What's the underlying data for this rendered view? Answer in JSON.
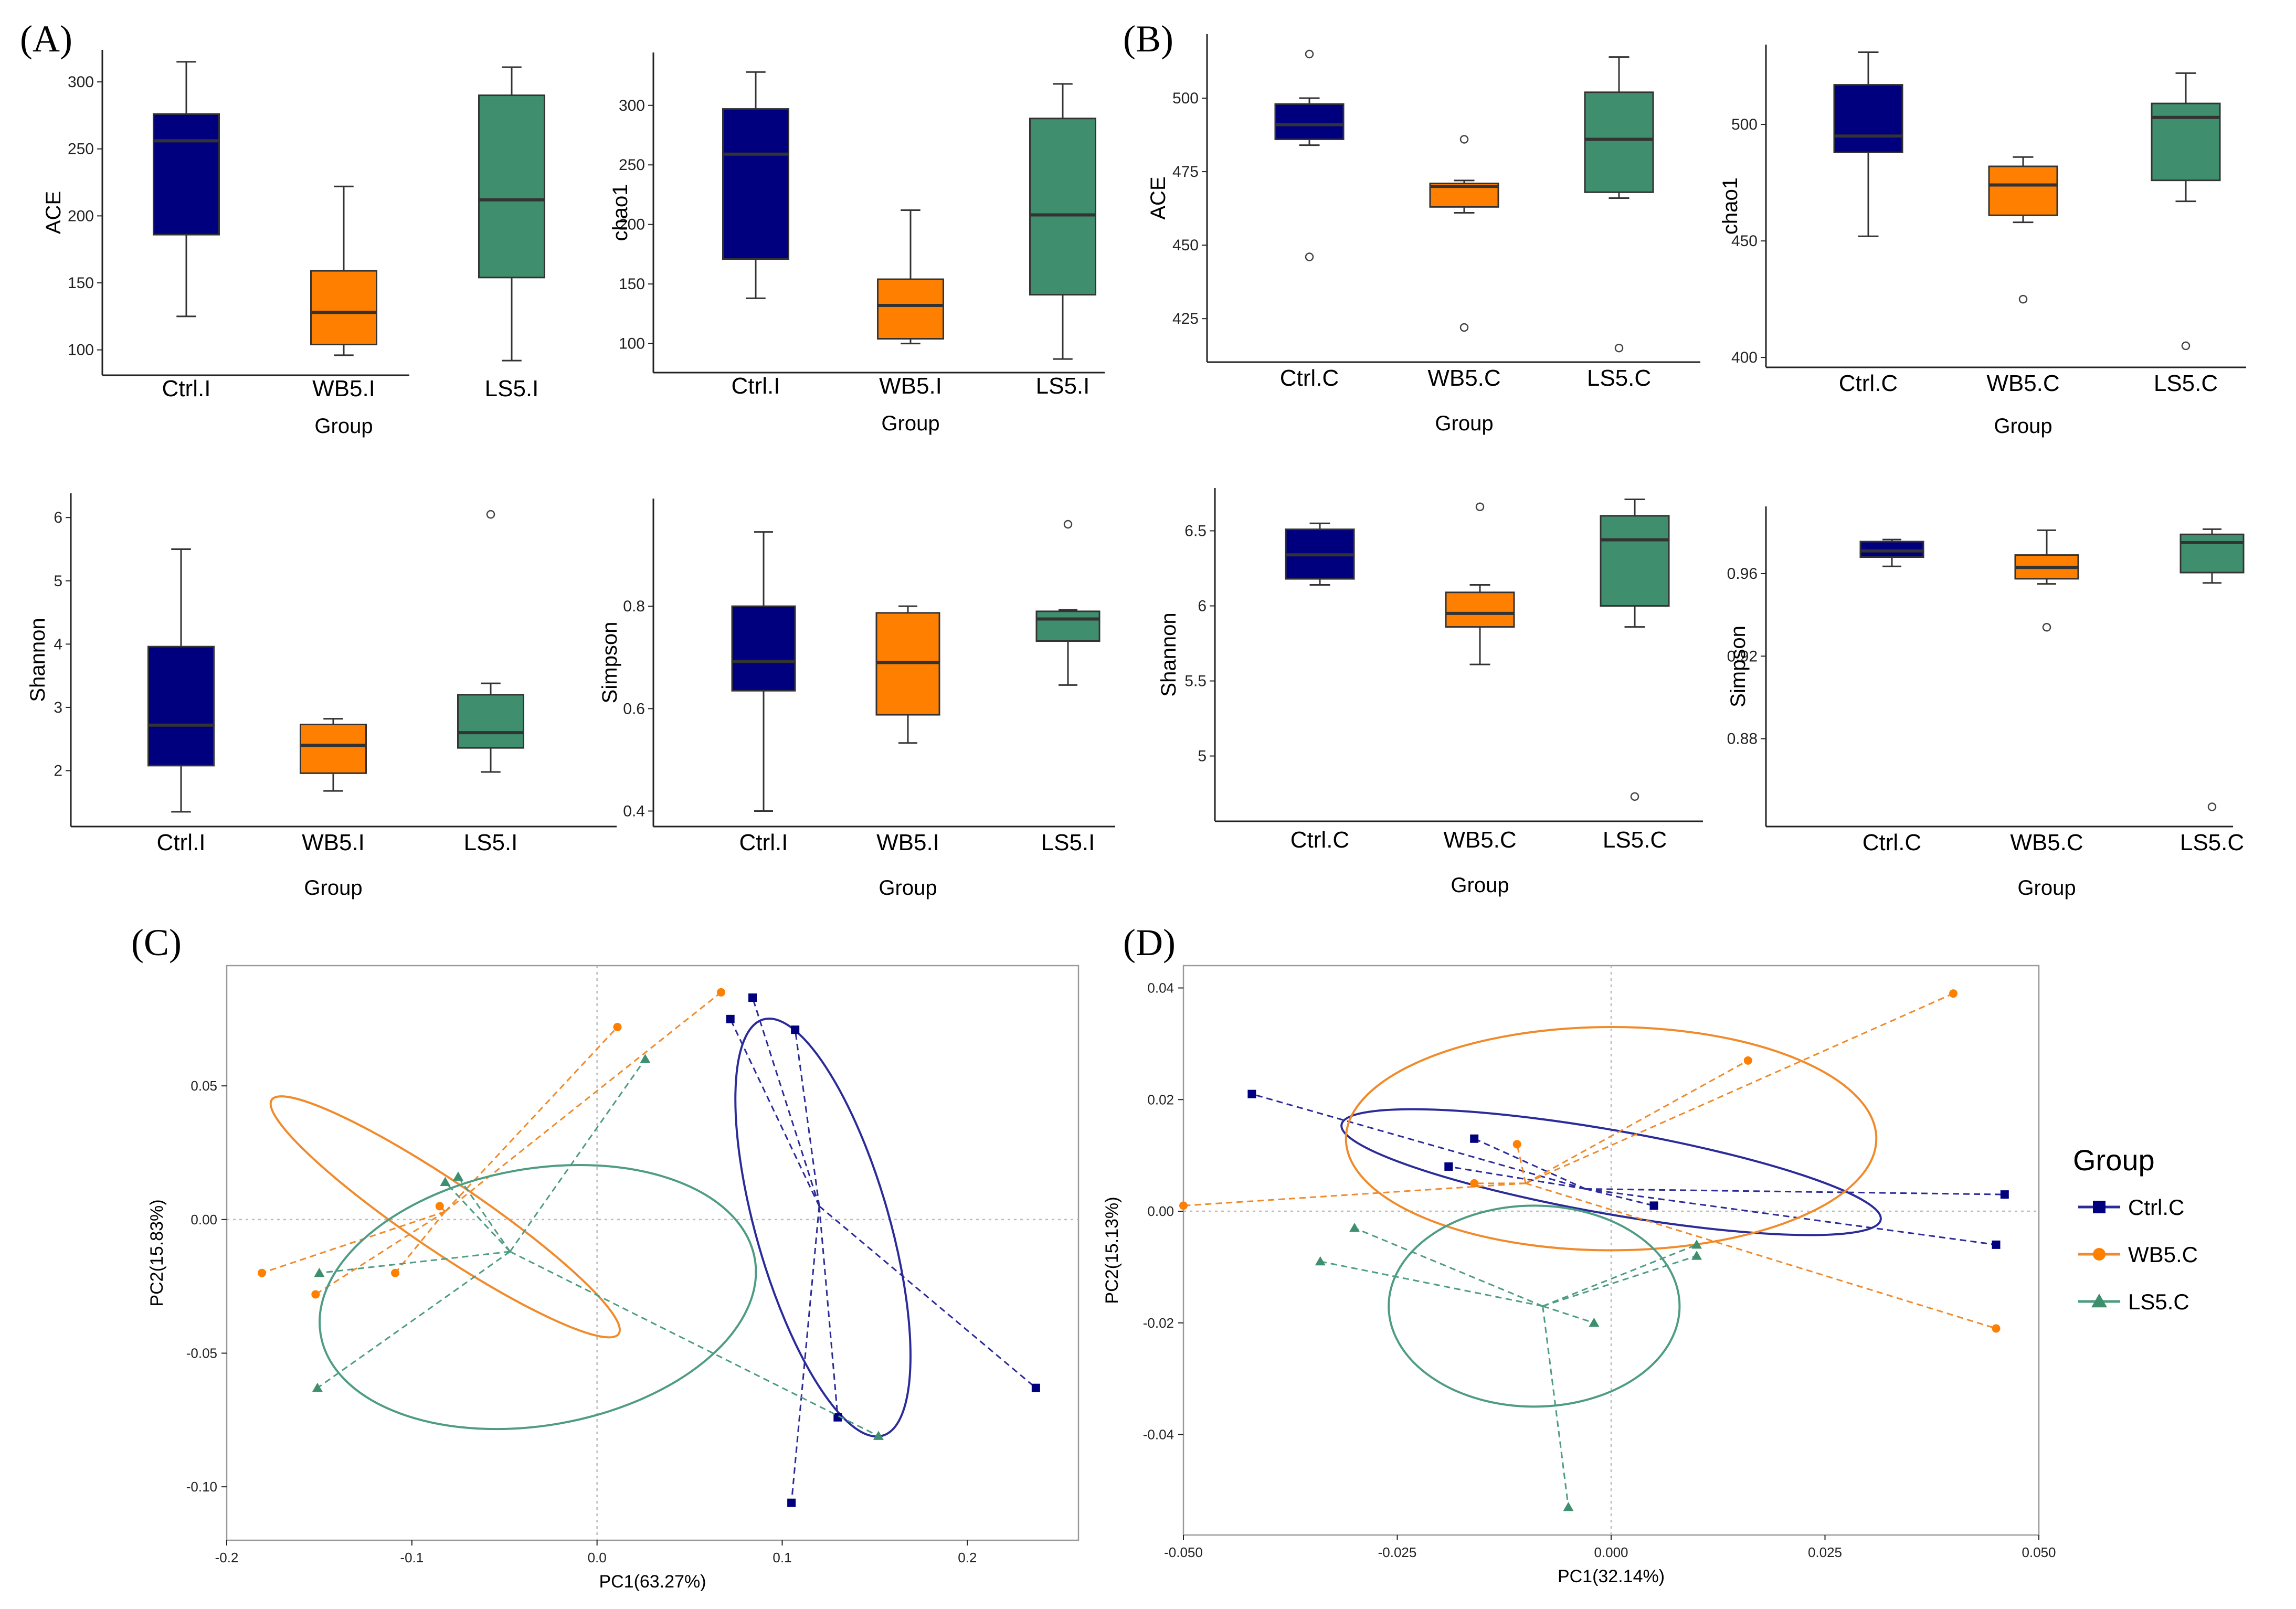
{
  "panel_labels": [
    "(A)",
    "(B)",
    "(C)",
    "(D)"
  ],
  "colors": {
    "Ctrl": "#00007F",
    "WB5": "#FF7F00",
    "LS5": "#3F8F6F",
    "Ctrl_line": "#2B2B9A",
    "WB5_line": "#F08A2A",
    "LS5_line": "#4E9C83",
    "axis": "#222222",
    "grid": "#BBBBBB"
  },
  "legend": {
    "title": "Group",
    "items": [
      {
        "label": "Ctrl.C",
        "group": "Ctrl",
        "marker": "square"
      },
      {
        "label": "WB5.C",
        "group": "WB5",
        "marker": "circle"
      },
      {
        "label": "LS5.C",
        "group": "LS5",
        "marker": "triangle"
      }
    ]
  },
  "chart_data": [
    {
      "panel": "A",
      "type": "box",
      "ylabel": "ACE",
      "xlabel": "Group",
      "yticks": [
        100,
        150,
        200,
        250,
        300
      ],
      "ylim": [
        85,
        320
      ],
      "categories": [
        "Ctrl.I",
        "WB5.I",
        "LS5.I"
      ],
      "boxes": [
        {
          "group": "Ctrl",
          "min": 125,
          "q1": 186,
          "median": 256,
          "q3": 276,
          "max": 315,
          "outliers": []
        },
        {
          "group": "WB5",
          "min": 96,
          "q1": 104,
          "median": 128,
          "q3": 159,
          "max": 222,
          "outliers": []
        },
        {
          "group": "LS5",
          "min": 92,
          "q1": 154,
          "median": 212,
          "q3": 290,
          "max": 311,
          "outliers": []
        }
      ]
    },
    {
      "panel": "A",
      "type": "box",
      "ylabel": "chao1",
      "xlabel": "Group",
      "yticks": [
        100,
        150,
        200,
        250,
        300
      ],
      "ylim": [
        80,
        340
      ],
      "categories": [
        "Ctrl.I",
        "WB5.I",
        "LS5.I"
      ],
      "boxes": [
        {
          "group": "Ctrl",
          "min": 138,
          "q1": 171,
          "median": 259,
          "q3": 297,
          "max": 328,
          "outliers": []
        },
        {
          "group": "WB5",
          "min": 100,
          "q1": 104,
          "median": 132,
          "q3": 154,
          "max": 212,
          "outliers": []
        },
        {
          "group": "LS5",
          "min": 87,
          "q1": 141,
          "median": 208,
          "q3": 289,
          "max": 318,
          "outliers": []
        }
      ]
    },
    {
      "panel": "A",
      "type": "box",
      "ylabel": "Shannon",
      "xlabel": "Group",
      "yticks": [
        2,
        3,
        4,
        5,
        6
      ],
      "ylim": [
        1.2,
        6.3
      ],
      "categories": [
        "Ctrl.I",
        "WB5.I",
        "LS5.I"
      ],
      "boxes": [
        {
          "group": "Ctrl",
          "min": 1.35,
          "q1": 2.08,
          "median": 2.72,
          "q3": 3.96,
          "max": 5.5,
          "outliers": []
        },
        {
          "group": "WB5",
          "min": 1.68,
          "q1": 1.96,
          "median": 2.4,
          "q3": 2.73,
          "max": 2.82,
          "outliers": []
        },
        {
          "group": "LS5",
          "min": 1.98,
          "q1": 2.36,
          "median": 2.6,
          "q3": 3.2,
          "max": 3.38,
          "outliers": [
            6.05
          ]
        }
      ]
    },
    {
      "panel": "A",
      "type": "box",
      "ylabel": "Simpson",
      "xlabel": "Group",
      "yticks": [
        0.4,
        0.6,
        0.8
      ],
      "ylim": [
        0.38,
        1.0
      ],
      "categories": [
        "Ctrl.I",
        "WB5.I",
        "LS5.I"
      ],
      "boxes": [
        {
          "group": "Ctrl",
          "min": 0.4,
          "q1": 0.635,
          "median": 0.692,
          "q3": 0.8,
          "max": 0.945,
          "outliers": []
        },
        {
          "group": "WB5",
          "min": 0.533,
          "q1": 0.588,
          "median": 0.69,
          "q3": 0.787,
          "max": 0.8,
          "outliers": []
        },
        {
          "group": "LS5",
          "min": 0.646,
          "q1": 0.732,
          "median": 0.775,
          "q3": 0.79,
          "max": 0.793,
          "outliers": [
            0.96
          ]
        }
      ]
    },
    {
      "panel": "B",
      "type": "box",
      "ylabel": "ACE",
      "xlabel": "Group",
      "yticks": [
        425,
        450,
        475,
        500
      ],
      "ylim": [
        412,
        520
      ],
      "categories": [
        "Ctrl.C",
        "WB5.C",
        "LS5.C"
      ],
      "boxes": [
        {
          "group": "Ctrl",
          "min": 484,
          "q1": 486,
          "median": 491,
          "q3": 498,
          "max": 500,
          "outliers": [
            515,
            446
          ]
        },
        {
          "group": "WB5",
          "min": 461,
          "q1": 463,
          "median": 470,
          "q3": 471,
          "max": 472,
          "outliers": [
            486,
            422
          ]
        },
        {
          "group": "LS5",
          "min": 466,
          "q1": 468,
          "median": 486,
          "q3": 502,
          "max": 514,
          "outliers": [
            415
          ]
        }
      ]
    },
    {
      "panel": "B",
      "type": "box",
      "ylabel": "chao1",
      "xlabel": "Group",
      "yticks": [
        400,
        450,
        500
      ],
      "ylim": [
        398,
        532
      ],
      "categories": [
        "Ctrl.C",
        "WB5.C",
        "LS5.C"
      ],
      "boxes": [
        {
          "group": "Ctrl",
          "min": 452,
          "q1": 488,
          "median": 495,
          "q3": 517,
          "max": 531,
          "outliers": []
        },
        {
          "group": "WB5",
          "min": 458,
          "q1": 461,
          "median": 474,
          "q3": 482,
          "max": 486,
          "outliers": [
            425
          ]
        },
        {
          "group": "LS5",
          "min": 467,
          "q1": 476,
          "median": 503,
          "q3": 509,
          "max": 522,
          "outliers": [
            405
          ]
        }
      ]
    },
    {
      "panel": "B",
      "type": "box",
      "ylabel": "Shannon",
      "xlabel": "Group",
      "yticks": [
        5.0,
        5.5,
        6.0,
        6.5
      ],
      "ylim": [
        4.6,
        6.75
      ],
      "categories": [
        "Ctrl.C",
        "WB5.C",
        "LS5.C"
      ],
      "boxes": [
        {
          "group": "Ctrl",
          "min": 6.14,
          "q1": 6.18,
          "median": 6.34,
          "q3": 6.51,
          "max": 6.55,
          "outliers": []
        },
        {
          "group": "WB5",
          "min": 5.61,
          "q1": 5.86,
          "median": 5.95,
          "q3": 6.09,
          "max": 6.14,
          "outliers": [
            6.66
          ]
        },
        {
          "group": "LS5",
          "min": 5.86,
          "q1": 6.0,
          "median": 6.44,
          "q3": 6.6,
          "max": 6.71,
          "outliers": [
            4.73
          ]
        }
      ]
    },
    {
      "panel": "B",
      "type": "box",
      "ylabel": "Simpson",
      "xlabel": "Group",
      "yticks": [
        0.88,
        0.92,
        0.96
      ],
      "ylim": [
        0.84,
        0.99
      ],
      "categories": [
        "Ctrl.C",
        "WB5.C",
        "LS5.C"
      ],
      "boxes": [
        {
          "group": "Ctrl",
          "min": 0.9635,
          "q1": 0.968,
          "median": 0.971,
          "q3": 0.9755,
          "max": 0.9765,
          "outliers": []
        },
        {
          "group": "WB5",
          "min": 0.955,
          "q1": 0.9575,
          "median": 0.963,
          "q3": 0.969,
          "max": 0.981,
          "outliers": [
            0.934
          ]
        },
        {
          "group": "LS5",
          "min": 0.9555,
          "q1": 0.9605,
          "median": 0.975,
          "q3": 0.979,
          "max": 0.9815,
          "outliers": [
            0.847
          ]
        }
      ]
    },
    {
      "panel": "C",
      "type": "scatter",
      "xlabel": "PC1(63.27%)",
      "ylabel": "PC2(15.83%)",
      "xticks": [
        "-0.2",
        "-0.1",
        "0.0",
        "0.1",
        "0.2"
      ],
      "xtick_values": [
        -0.2,
        -0.1,
        0,
        0.1,
        0.2
      ],
      "yticks": [
        "-0.10",
        "-0.05",
        "0.00",
        "0.05"
      ],
      "ytick_values": [
        -0.1,
        -0.05,
        0,
        0.05
      ],
      "xlim": [
        -0.2,
        0.26
      ],
      "ylim": [
        -0.12,
        0.095
      ],
      "groups": [
        {
          "group": "Ctrl",
          "marker": "square",
          "centroid": [
            0.12,
            0.005
          ],
          "points": [
            [
              0.072,
              0.075
            ],
            [
              0.084,
              0.083
            ],
            [
              0.107,
              0.071
            ],
            [
              0.13,
              -0.074
            ],
            [
              0.105,
              -0.106
            ],
            [
              0.237,
              -0.063
            ]
          ],
          "ellipse": {
            "center": [
              0.122,
              -0.003
            ],
            "rx": 0.036,
            "ry": 0.081,
            "angle_deg": 16
          }
        },
        {
          "group": "WB5",
          "marker": "circle",
          "centroid": [
            -0.082,
            0.003
          ],
          "points": [
            [
              -0.181,
              -0.02
            ],
            [
              -0.152,
              -0.028
            ],
            [
              -0.109,
              -0.02
            ],
            [
              0.011,
              0.072
            ],
            [
              0.067,
              0.085
            ],
            [
              -0.085,
              0.005
            ]
          ],
          "ellipse": {
            "center": [
              -0.082,
              0.001
            ],
            "rx": 0.113,
            "ry": 0.013,
            "angle_deg": -34
          }
        },
        {
          "group": "LS5",
          "marker": "triangle",
          "centroid": [
            -0.047,
            -0.012
          ],
          "points": [
            [
              -0.151,
              -0.063
            ],
            [
              -0.15,
              -0.02
            ],
            [
              -0.082,
              0.014
            ],
            [
              -0.075,
              0.016
            ],
            [
              0.026,
              0.06
            ],
            [
              0.152,
              -0.081
            ]
          ],
          "ellipse": {
            "center": [
              -0.032,
              -0.029
            ],
            "rx": 0.119,
            "ry": 0.048,
            "angle_deg": 10
          }
        }
      ]
    },
    {
      "panel": "D",
      "type": "scatter",
      "xlabel": "PC1(32.14%)",
      "ylabel": "PC2(15.13%)",
      "xticks": [
        "-0.050",
        "-0.025",
        "0.000",
        "0.025",
        "0.050"
      ],
      "xtick_values": [
        -0.05,
        -0.025,
        0,
        0.025,
        0.05
      ],
      "yticks": [
        "-0.04",
        "-0.02",
        "0.00",
        "0.02",
        "0.04"
      ],
      "ytick_values": [
        -0.04,
        -0.02,
        0,
        0.02,
        0.04
      ],
      "xlim": [
        -0.05,
        0.05
      ],
      "ylim": [
        -0.058,
        0.044
      ],
      "groups": [
        {
          "group": "Ctrl",
          "marker": "square",
          "centroid": [
            -0.003,
            0.004
          ],
          "points": [
            [
              -0.042,
              0.021
            ],
            [
              -0.016,
              0.013
            ],
            [
              -0.019,
              0.008
            ],
            [
              0.005,
              0.001
            ],
            [
              0.045,
              -0.006
            ],
            [
              0.046,
              0.003
            ]
          ],
          "ellipse": {
            "center": [
              0.0,
              0.007
            ],
            "rx": 0.032,
            "ry": 0.0075,
            "angle_deg": -10
          }
        },
        {
          "group": "WB5",
          "marker": "circle",
          "centroid": [
            -0.01,
            0.005
          ],
          "points": [
            [
              -0.05,
              0.001
            ],
            [
              -0.016,
              0.005
            ],
            [
              -0.011,
              0.012
            ],
            [
              0.016,
              0.027
            ],
            [
              0.04,
              0.039
            ],
            [
              0.045,
              -0.021
            ]
          ],
          "ellipse": {
            "center": [
              0.0,
              0.013
            ],
            "rx": 0.031,
            "ry": 0.02,
            "angle_deg": 0
          }
        },
        {
          "group": "LS5",
          "marker": "triangle",
          "centroid": [
            -0.008,
            -0.017
          ],
          "points": [
            [
              -0.034,
              -0.009
            ],
            [
              -0.03,
              -0.003
            ],
            [
              -0.002,
              -0.02
            ],
            [
              0.01,
              -0.006
            ],
            [
              0.01,
              -0.008
            ],
            [
              -0.005,
              -0.053
            ]
          ],
          "ellipse": {
            "center": [
              -0.009,
              -0.017
            ],
            "rx": 0.017,
            "ry": 0.018,
            "angle_deg": 0
          }
        }
      ]
    }
  ]
}
